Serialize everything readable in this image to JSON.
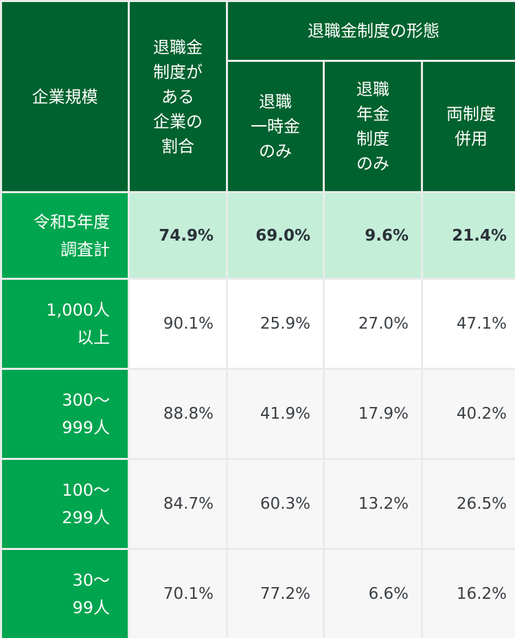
{
  "headers": {
    "company_size": "企業規模",
    "ratio": "退職金\n制度が\nある\n企業の\n割合",
    "forms_group": "退職金制度の形態",
    "lump_sum": "退職\n一時金\nのみ",
    "pension": "退職\n年金\n制度\nのみ",
    "both": "両制度\n併用"
  },
  "rows": [
    {
      "label": "令和5年度\n調査計",
      "ratio": "74.9%",
      "lump_sum": "69.0%",
      "pension": "9.6%",
      "both": "21.4%"
    },
    {
      "label": "1,000人\n以上",
      "ratio": "90.1%",
      "lump_sum": "25.9%",
      "pension": "27.0%",
      "both": "47.1%"
    },
    {
      "label": "300〜\n999人",
      "ratio": "88.8%",
      "lump_sum": "41.9%",
      "pension": "17.9%",
      "both": "40.2%"
    },
    {
      "label": "100〜\n299人",
      "ratio": "84.7%",
      "lump_sum": "60.3%",
      "pension": "13.2%",
      "both": "26.5%"
    },
    {
      "label": "30〜\n99人",
      "ratio": "70.1%",
      "lump_sum": "77.2%",
      "pension": "6.6%",
      "both": "16.2%"
    }
  ],
  "colors": {
    "header_dark_green": "#00622e",
    "row_label_green": "#00a54f",
    "highlight_row_bg": "#c4eed8",
    "value_text": "#3a3f44"
  }
}
